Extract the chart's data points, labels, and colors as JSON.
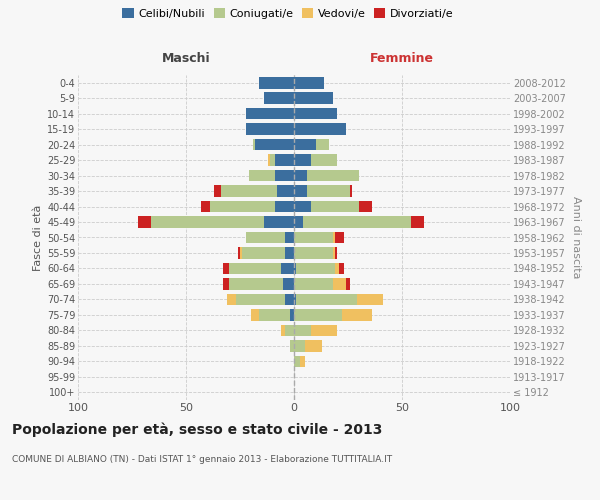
{
  "age_groups": [
    "100+",
    "95-99",
    "90-94",
    "85-89",
    "80-84",
    "75-79",
    "70-74",
    "65-69",
    "60-64",
    "55-59",
    "50-54",
    "45-49",
    "40-44",
    "35-39",
    "30-34",
    "25-29",
    "20-24",
    "15-19",
    "10-14",
    "5-9",
    "0-4"
  ],
  "birth_years": [
    "≤ 1912",
    "1913-1917",
    "1918-1922",
    "1923-1927",
    "1928-1932",
    "1933-1937",
    "1938-1942",
    "1943-1947",
    "1948-1952",
    "1953-1957",
    "1958-1962",
    "1963-1967",
    "1968-1972",
    "1973-1977",
    "1978-1982",
    "1983-1987",
    "1988-1992",
    "1993-1997",
    "1998-2002",
    "2003-2007",
    "2008-2012"
  ],
  "colors": {
    "celibe": "#3b6e9e",
    "coniugato": "#b5c98e",
    "vedovo": "#f0c060",
    "divorziato": "#cc2222"
  },
  "maschi": {
    "celibe": [
      0,
      0,
      0,
      0,
      0,
      2,
      4,
      5,
      6,
      4,
      4,
      14,
      9,
      8,
      9,
      9,
      18,
      22,
      22,
      14,
      16
    ],
    "coniugato": [
      0,
      0,
      0,
      2,
      4,
      14,
      23,
      25,
      24,
      20,
      18,
      52,
      30,
      26,
      12,
      2,
      1,
      0,
      0,
      0,
      0
    ],
    "vedovo": [
      0,
      0,
      0,
      0,
      2,
      4,
      4,
      0,
      0,
      1,
      0,
      0,
      0,
      0,
      0,
      1,
      0,
      0,
      0,
      0,
      0
    ],
    "divorziato": [
      0,
      0,
      0,
      0,
      0,
      0,
      0,
      3,
      3,
      1,
      0,
      6,
      4,
      3,
      0,
      0,
      0,
      0,
      0,
      0,
      0
    ]
  },
  "femmine": {
    "nubile": [
      0,
      0,
      0,
      0,
      0,
      0,
      1,
      0,
      1,
      0,
      0,
      4,
      8,
      6,
      6,
      8,
      10,
      24,
      20,
      18,
      14
    ],
    "coniugata": [
      0,
      0,
      3,
      5,
      8,
      22,
      28,
      18,
      18,
      18,
      18,
      50,
      22,
      20,
      24,
      12,
      6,
      0,
      0,
      0,
      0
    ],
    "vedova": [
      0,
      0,
      2,
      8,
      12,
      14,
      12,
      6,
      2,
      1,
      1,
      0,
      0,
      0,
      0,
      0,
      0,
      0,
      0,
      0,
      0
    ],
    "divorziata": [
      0,
      0,
      0,
      0,
      0,
      0,
      0,
      2,
      2,
      1,
      4,
      6,
      6,
      1,
      0,
      0,
      0,
      0,
      0,
      0,
      0
    ]
  },
  "xlim": 100,
  "title": "Popolazione per età, sesso e stato civile - 2013",
  "subtitle": "COMUNE DI ALBIANO (TN) - Dati ISTAT 1° gennaio 2013 - Elaborazione TUTTITALIA.IT",
  "ylabel_left": "Fasce di età",
  "ylabel_right": "Anni di nascita",
  "xlabel_left": "Maschi",
  "xlabel_right": "Femmine",
  "bg_color": "#f7f7f7",
  "bar_height": 0.75
}
